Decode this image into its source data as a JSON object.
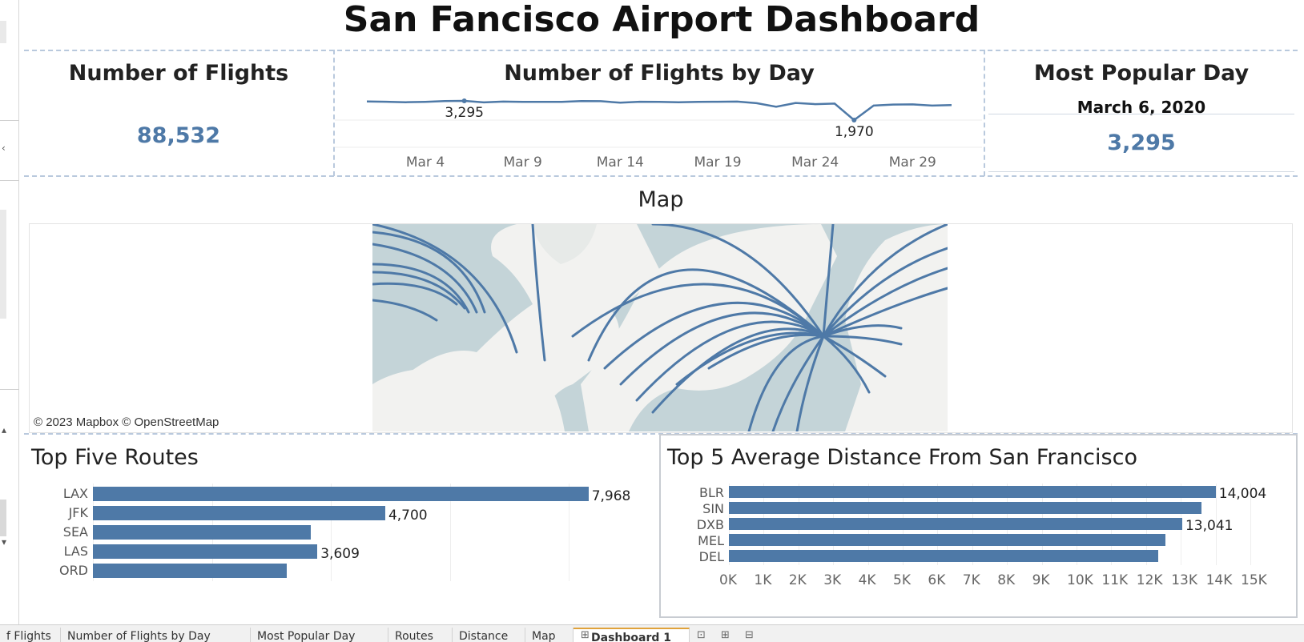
{
  "dashboard": {
    "title": "San Fancisco Airport Dashboard"
  },
  "kpi_flights": {
    "title": "Number of Flights",
    "value": "88,532"
  },
  "flights_by_day": {
    "title": "Number of Flights by Day",
    "x_ticks": [
      "Mar 4",
      "Mar 9",
      "Mar 14",
      "Mar 19",
      "Mar 24",
      "Mar 29"
    ],
    "max_label": "3,295",
    "min_label": "1,970"
  },
  "popular_day": {
    "title": "Most Popular Day",
    "date": "March 6, 2020",
    "value": "3,295"
  },
  "map": {
    "title": "Map",
    "attribution": "© 2023 Mapbox © OpenStreetMap"
  },
  "top_routes": {
    "title": "Top Five Routes",
    "categories": [
      "LAX",
      "JFK",
      "SEA",
      "LAS",
      "ORD"
    ],
    "values": [
      7968,
      4700,
      3500,
      3609,
      3120
    ],
    "labels": [
      "7,968",
      "4,700",
      "",
      "3,609",
      ""
    ],
    "xmax": 8500
  },
  "top_distance": {
    "title": "Top 5 Average Distance From San Francisco",
    "categories": [
      "BLR",
      "SIN",
      "DXB",
      "MEL",
      "DEL"
    ],
    "values": [
      14004,
      13600,
      13041,
      12550,
      12350
    ],
    "labels": [
      "14,004",
      "",
      "13,041",
      "",
      ""
    ],
    "x_ticks": [
      "0K",
      "1K",
      "2K",
      "3K",
      "4K",
      "5K",
      "6K",
      "7K",
      "8K",
      "9K",
      "10K",
      "11K",
      "12K",
      "13K",
      "14K",
      "15K"
    ],
    "xmax": 15000
  },
  "chart_data": [
    {
      "type": "line",
      "title": "Number of Flights by Day",
      "x_ticks": [
        "Mar 4",
        "Mar 9",
        "Mar 14",
        "Mar 19",
        "Mar 24",
        "Mar 29"
      ],
      "x": [
        1,
        2,
        3,
        4,
        5,
        6,
        7,
        8,
        9,
        10,
        11,
        12,
        13,
        14,
        15,
        16,
        17,
        18,
        19,
        20,
        21,
        22,
        23,
        24,
        25,
        26,
        27,
        28,
        29,
        30,
        31
      ],
      "values": [
        3270,
        3260,
        3240,
        3255,
        3290,
        3295,
        3230,
        3265,
        3250,
        3250,
        3255,
        3290,
        3280,
        3220,
        3260,
        3250,
        3240,
        3250,
        3260,
        3265,
        3200,
        3050,
        3210,
        3160,
        3180,
        1970,
        3100,
        3140,
        3150,
        3100,
        3120
      ],
      "annotations": [
        {
          "x": 6,
          "label": "3,295"
        },
        {
          "x": 26,
          "label": "1,970"
        }
      ]
    },
    {
      "type": "bar",
      "title": "Top Five Routes",
      "categories": [
        "LAX",
        "JFK",
        "SEA",
        "LAS",
        "ORD"
      ],
      "values": [
        7968,
        4700,
        3500,
        3609,
        3120
      ]
    },
    {
      "type": "bar",
      "title": "Top 5 Average Distance From San Francisco",
      "categories": [
        "BLR",
        "SIN",
        "DXB",
        "MEL",
        "DEL"
      ],
      "values": [
        14004,
        13600,
        13041,
        12550,
        12350
      ],
      "xlim": [
        0,
        15000
      ]
    }
  ],
  "tabs": [
    {
      "label": "f Flights"
    },
    {
      "label": "Number of Flights by Day"
    },
    {
      "label": "Most Popular Day"
    },
    {
      "label": "Routes"
    },
    {
      "label": "Distance"
    },
    {
      "label": "Map"
    },
    {
      "label": "Dashboard 1"
    }
  ],
  "colors": {
    "bar": "#4e79a7",
    "water": "#c4d4d8",
    "land": "#f2f2f0",
    "route": "#4e79a7"
  }
}
